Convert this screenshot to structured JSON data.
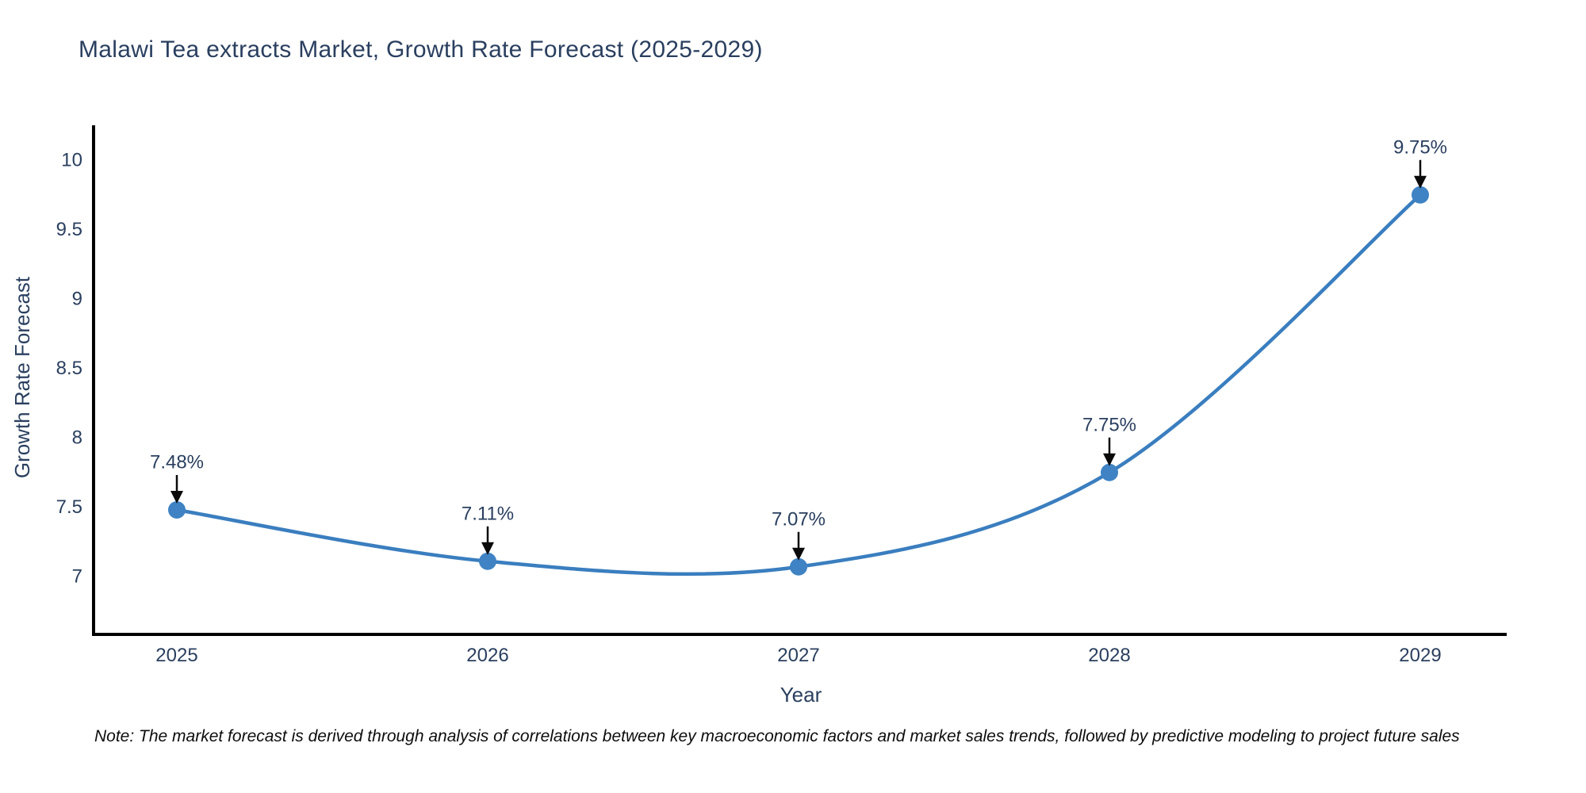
{
  "note": "Note: The market forecast is derived through analysis of correlations between key macroeconomic factors and market sales trends, followed by predictive modeling to project future sales",
  "chart_data": {
    "type": "line",
    "title": "Malawi Tea extracts Market, Growth Rate Forecast (2025-2029)",
    "xlabel": "Year",
    "ylabel": "Growth Rate Forecast",
    "x": [
      2025,
      2026,
      2027,
      2028,
      2029
    ],
    "xtick_labels": [
      "2025",
      "2026",
      "2027",
      "2028",
      "2029"
    ],
    "series": [
      {
        "name": "Growth Rate Forecast",
        "values": [
          7.48,
          7.11,
          7.07,
          7.75,
          9.75
        ]
      }
    ],
    "point_labels": [
      "7.48%",
      "7.11%",
      "7.07%",
      "7.75%",
      "9.75%"
    ],
    "ytick_labels": [
      "7",
      "7.5",
      "8",
      "8.5",
      "9",
      "9.5",
      "10"
    ],
    "yticks": [
      7,
      7.5,
      8,
      8.5,
      9,
      9.5,
      10
    ],
    "ylim": [
      6.58,
      10.26
    ],
    "line_shape": "spline",
    "grid": false,
    "legend": "none",
    "colors": {
      "line": "#3a7ebf",
      "marker": "#3f83c4",
      "axis": "#000000",
      "tick_text": "#2a3f5f",
      "annotation_text": "#2a3f5f",
      "arrow": "#0a0a0a"
    }
  }
}
